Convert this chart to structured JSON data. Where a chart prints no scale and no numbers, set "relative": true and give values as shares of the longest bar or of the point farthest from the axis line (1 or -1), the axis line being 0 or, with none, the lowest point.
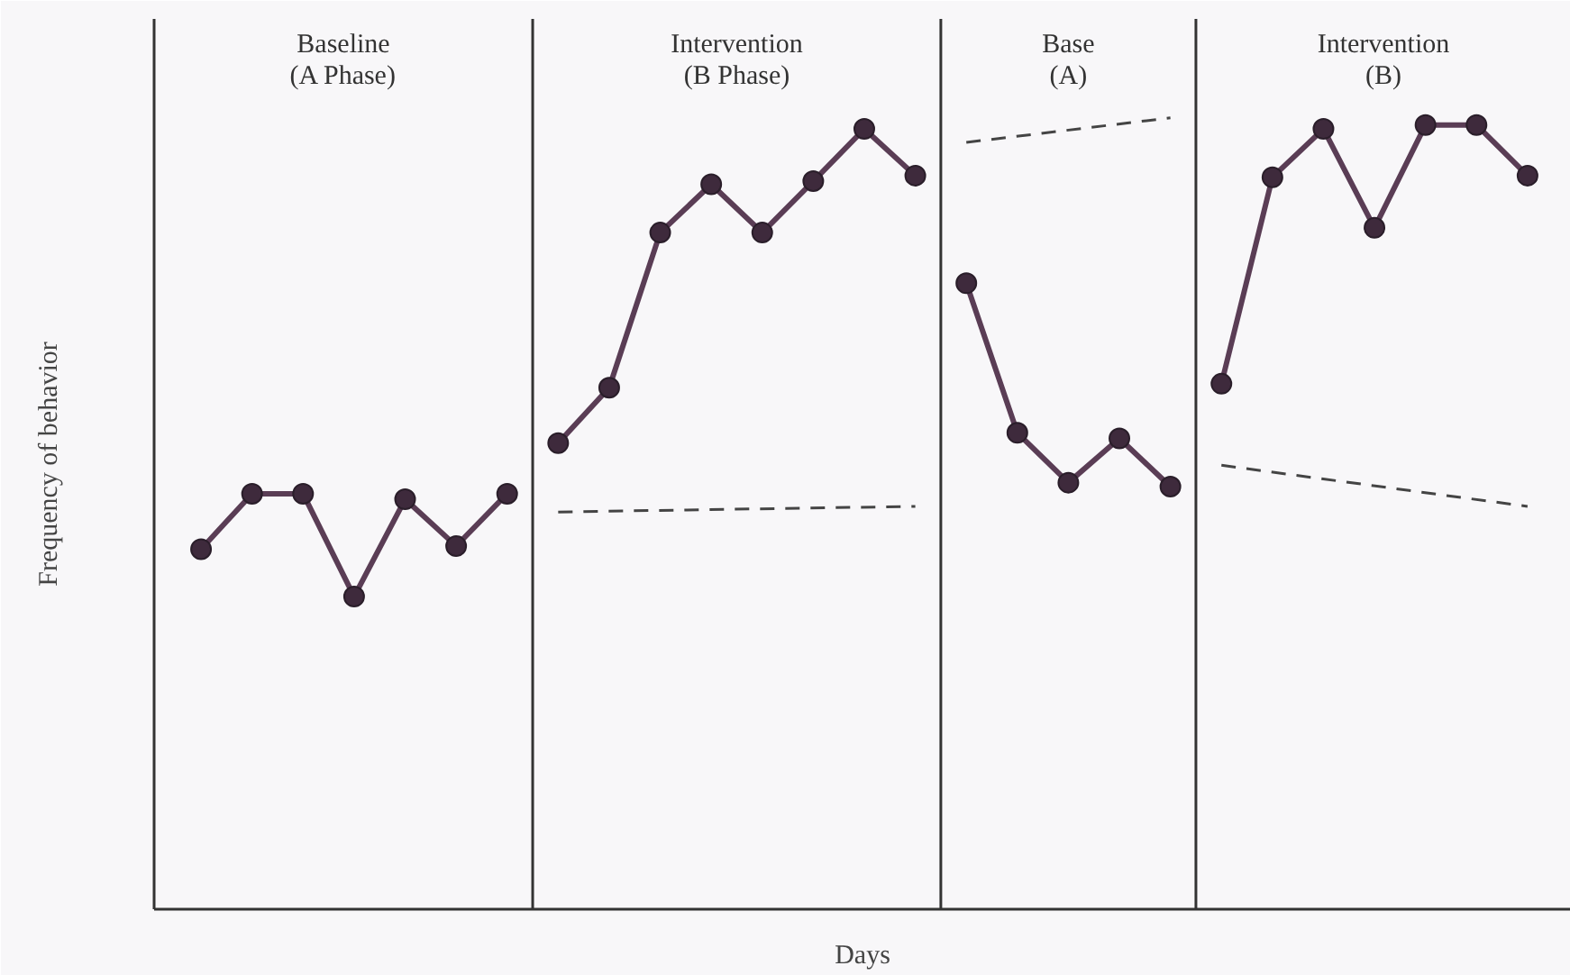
{
  "chart_data": {
    "type": "line",
    "relative": true,
    "xlabel": "Days",
    "ylabel": "Frequency of behavior",
    "annotations": [
      "Baseline\n(A Phase)",
      "Intervention\n(B Phase)",
      "Base\n(A)",
      "Intervention\n(B)"
    ],
    "grid": false,
    "tick_labels": false,
    "marker": "circle",
    "categories": [
      null,
      null,
      null,
      null,
      null,
      null,
      null,
      null,
      null,
      null,
      null,
      null,
      null,
      null,
      null,
      null,
      null,
      null,
      null,
      null,
      null,
      null,
      null,
      null,
      null,
      null,
      null
    ],
    "series": [
      {
        "color": "#5a3d55",
        "values": [
          0.455,
          0.525,
          0.525,
          0.395,
          0.518,
          0.459,
          0.525,
          null,
          null,
          null,
          null,
          null,
          null,
          null,
          null,
          null,
          null,
          null,
          null,
          null,
          null,
          null,
          null,
          null,
          null,
          null,
          null
        ]
      },
      {
        "color": "#5a3d55",
        "values": [
          null,
          null,
          null,
          null,
          null,
          null,
          null,
          0.589,
          0.659,
          0.855,
          0.916,
          0.855,
          0.92,
          0.986,
          0.927,
          null,
          null,
          null,
          null,
          null,
          null,
          null,
          null,
          null,
          null,
          null,
          null
        ]
      },
      {
        "color": "#5a3d55",
        "values": [
          null,
          null,
          null,
          null,
          null,
          null,
          null,
          null,
          null,
          null,
          null,
          null,
          null,
          null,
          null,
          0.791,
          0.602,
          0.539,
          0.595,
          0.534,
          null,
          null,
          null,
          null,
          null,
          null,
          null
        ]
      },
      {
        "color": "#5a3d55",
        "values": [
          null,
          null,
          null,
          null,
          null,
          null,
          null,
          null,
          null,
          null,
          null,
          null,
          null,
          null,
          null,
          null,
          null,
          null,
          null,
          null,
          0.664,
          0.925,
          0.986,
          0.861,
          0.991,
          0.991,
          0.927
        ]
      },
      {
        "type": "line",
        "line_style": "dashed",
        "marker": "none",
        "color": "#444444",
        "values": [
          null,
          null,
          null,
          null,
          null,
          null,
          null,
          0.502,
          null,
          null,
          null,
          null,
          null,
          null,
          0.509,
          null,
          null,
          null,
          null,
          null,
          null,
          null,
          null,
          null,
          null,
          null,
          null
        ]
      },
      {
        "type": "line",
        "line_style": "dashed",
        "marker": "none",
        "color": "#444444",
        "values": [
          null,
          null,
          null,
          null,
          null,
          null,
          null,
          null,
          null,
          null,
          null,
          null,
          null,
          null,
          null,
          0.969,
          null,
          null,
          null,
          1.0,
          null,
          null,
          null,
          null,
          null,
          null,
          null
        ]
      },
      {
        "type": "line",
        "line_style": "dashed",
        "marker": "none",
        "color": "#444444",
        "values": [
          null,
          null,
          null,
          null,
          null,
          null,
          null,
          null,
          null,
          null,
          null,
          null,
          null,
          null,
          null,
          null,
          null,
          null,
          null,
          null,
          0.561,
          null,
          null,
          null,
          null,
          null,
          0.509
        ]
      }
    ]
  }
}
